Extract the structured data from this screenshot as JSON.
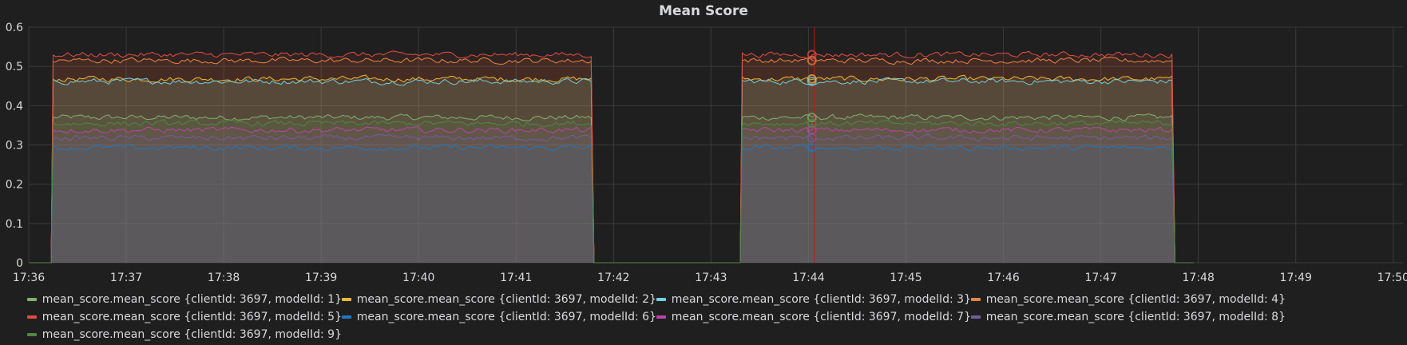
{
  "panel": {
    "title": "Mean Score"
  },
  "chart_data": {
    "type": "area",
    "title": "Mean Score",
    "xlabel": "",
    "ylabel": "",
    "ylim": [
      0,
      0.6
    ],
    "y_ticks": [
      "0",
      "0.1",
      "0.2",
      "0.3",
      "0.4",
      "0.5",
      "0.6"
    ],
    "x_range_minutes": [
      0,
      14.1
    ],
    "x_ticks": [
      {
        "label": "17:36",
        "minute": 0
      },
      {
        "label": "17:37",
        "minute": 1
      },
      {
        "label": "17:38",
        "minute": 2
      },
      {
        "label": "17:39",
        "minute": 3
      },
      {
        "label": "17:40",
        "minute": 4
      },
      {
        "label": "17:41",
        "minute": 5
      },
      {
        "label": "17:42",
        "minute": 6
      },
      {
        "label": "17:43",
        "minute": 7
      },
      {
        "label": "17:44",
        "minute": 8
      },
      {
        "label": "17:45",
        "minute": 9
      },
      {
        "label": "17:46",
        "minute": 10
      },
      {
        "label": "17:47",
        "minute": 11
      },
      {
        "label": "17:48",
        "minute": 12
      },
      {
        "label": "17:49",
        "minute": 13
      },
      {
        "label": "17:50",
        "minute": 14
      }
    ],
    "active_windows": [
      [
        0.25,
        5.78
      ],
      [
        7.32,
        11.74
      ]
    ],
    "data_end_minute": 11.95,
    "crosshair_minute": 8.06,
    "grid": true,
    "legend_position": "bottom",
    "series": [
      {
        "name": "mean_score.mean_score {clientId: 3697, modelId: 1}",
        "color": "#7eb26d",
        "level": 0.37
      },
      {
        "name": "mean_score.mean_score {clientId: 3697, modelId: 2}",
        "color": "#eab839",
        "level": 0.468
      },
      {
        "name": "mean_score.mean_score {clientId: 3697, modelId: 3}",
        "color": "#6ed0e0",
        "level": 0.462
      },
      {
        "name": "mean_score.mean_score {clientId: 3697, modelId: 4}",
        "color": "#ef843c",
        "level": 0.515
      },
      {
        "name": "mean_score.mean_score {clientId: 3697, modelId: 5}",
        "color": "#e24d42",
        "level": 0.53
      },
      {
        "name": "mean_score.mean_score {clientId: 3697, modelId: 6}",
        "color": "#1f78c1",
        "level": 0.293
      },
      {
        "name": "mean_score.mean_score {clientId: 3697, modelId: 7}",
        "color": "#ba43a9",
        "level": 0.338
      },
      {
        "name": "mean_score.mean_score {clientId: 3697, modelId: 8}",
        "color": "#705da0",
        "level": 0.318
      },
      {
        "name": "mean_score.mean_score {clientId: 3697, modelId: 9}",
        "color": "#508642",
        "level": 0.355
      }
    ]
  }
}
